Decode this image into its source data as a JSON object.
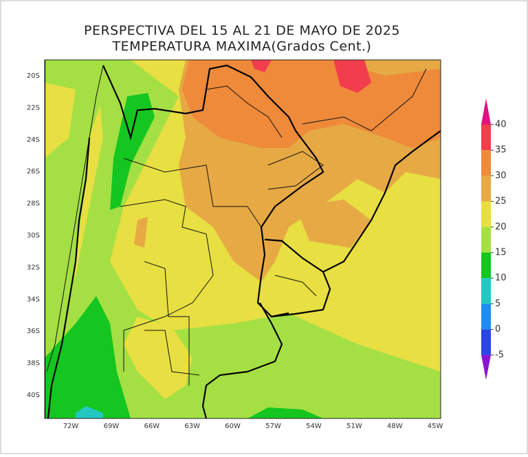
{
  "title": {
    "line1": "PERSPECTIVA DEL 15 AL 21 DE MAYO DE 2025",
    "line2": "TEMPERATURA MAXIMA(Grados Cent.)"
  },
  "lat_labels": [
    "20S",
    "22S",
    "24S",
    "26S",
    "28S",
    "30S",
    "32S",
    "34S",
    "36S",
    "38S",
    "40S"
  ],
  "lon_labels": [
    "72W",
    "69W",
    "66W",
    "63W",
    "60W",
    "57W",
    "54W",
    "51W",
    "48W",
    "45W"
  ],
  "colorbar": {
    "levels": [
      40,
      35,
      30,
      25,
      20,
      15,
      10,
      5,
      0,
      -5
    ],
    "colors": [
      "#e0127f",
      "#f23d4c",
      "#ee8a3a",
      "#e6a944",
      "#e8df42",
      "#a4e043",
      "#14c61f",
      "#22c8c0",
      "#1e8cf0",
      "#2a46e6",
      "#8c14d0"
    ]
  }
}
